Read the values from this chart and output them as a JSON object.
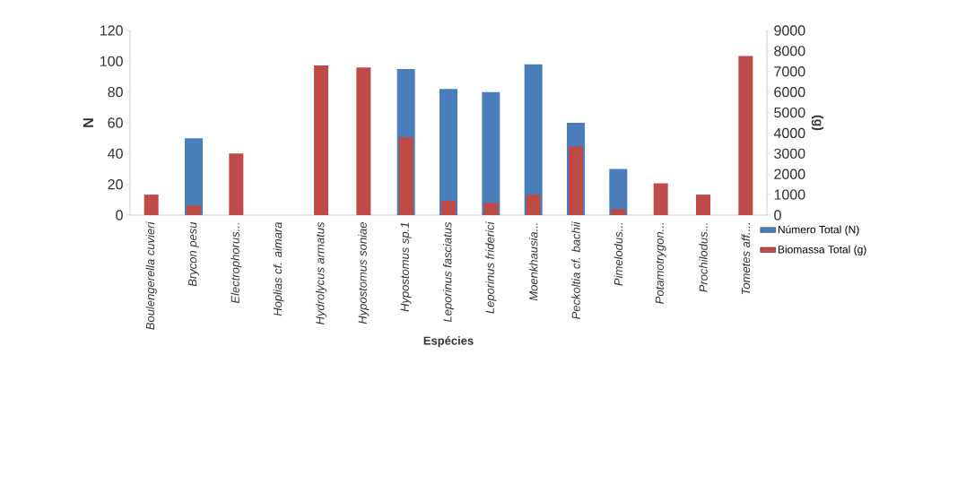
{
  "chart_data": {
    "type": "bar",
    "xlabel": "Espécies",
    "ylabel": "N",
    "y2label": "(g)",
    "categories": [
      "Boulengerella cuvieri",
      "Brycon pesu",
      "Electrophorus...",
      "Hoplias cf. aimara",
      "Hydrolycus armatus",
      "Hypostomus soniae",
      "Hypostomus sp.1",
      "Leporinus fasciatus",
      "Leporinus friderici",
      "Moenkhausia...",
      "Peckoltia cf. bachii",
      "Pimelodus...",
      "Potamotrygon...",
      "Prochilodus...",
      "Tometes aff...."
    ],
    "series": [
      {
        "name": "Número Total (N)",
        "color": "#4a7ebb",
        "values": [
          null,
          50,
          null,
          0,
          null,
          null,
          95,
          82,
          80,
          98,
          60,
          30,
          null,
          null,
          null
        ]
      },
      {
        "name": "Biomassa Total (g)",
        "color": "#be4b48",
        "axis": "y2",
        "values": [
          1000,
          470,
          3000,
          0,
          7300,
          7200,
          3800,
          700,
          600,
          1000,
          3350,
          300,
          1550,
          1000,
          7750
        ]
      }
    ],
    "ylim": [
      0,
      120
    ],
    "yticks": [
      0,
      20,
      40,
      60,
      80,
      100,
      120
    ],
    "y2lim": [
      0,
      9000
    ],
    "y2ticks": [
      0,
      1000,
      2000,
      3000,
      4000,
      5000,
      6000,
      7000,
      8000,
      9000
    ],
    "legend": "right"
  }
}
